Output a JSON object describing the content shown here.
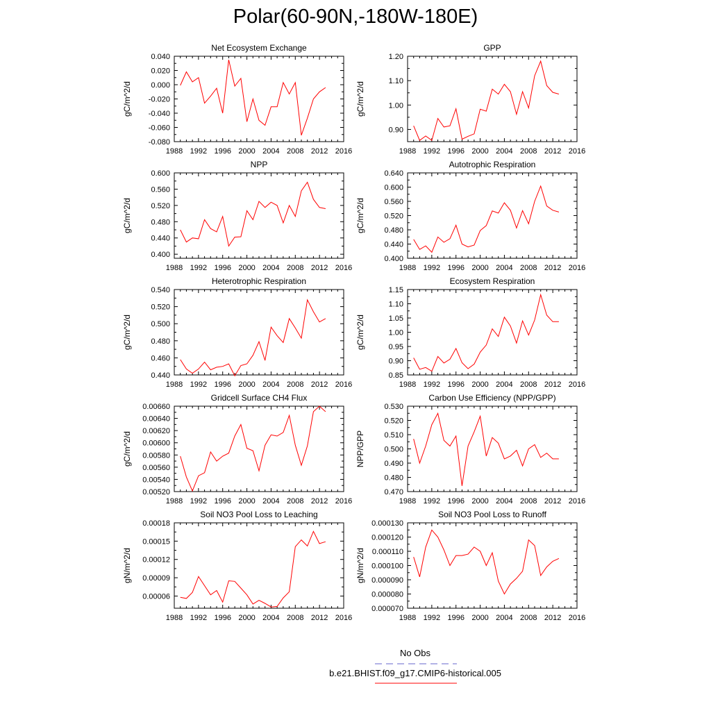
{
  "page": {
    "title": "Polar(60-90N,-180W-180E)"
  },
  "legend": {
    "obs_label": "No Obs",
    "obs_color": "#6666cc",
    "case_label": "b.e21.BHIST.f09_g17.CMIP6-historical.005",
    "case_color": "#ff0000"
  },
  "chart_data": [
    {
      "type": "line",
      "title": "Net Ecosystem Exchange",
      "ylabel": "gC/m^2/d",
      "xlim": [
        1988,
        2016
      ],
      "xticks": [
        "1988",
        "1992",
        "1996",
        "2000",
        "2004",
        "2008",
        "2012",
        "2016"
      ],
      "ylim": [
        -0.08,
        0.04
      ],
      "yticks": [
        "-0.080",
        "-0.060",
        "-0.040",
        "-0.020",
        "0.000",
        "0.020",
        "0.040"
      ],
      "x": [
        1989,
        1990,
        1991,
        1992,
        1993,
        1994,
        1995,
        1996,
        1997,
        1998,
        1999,
        2000,
        2001,
        2002,
        2003,
        2004,
        2005,
        2006,
        2007,
        2008,
        2009,
        2010,
        2011,
        2012,
        2013
      ],
      "series": [
        {
          "name": "b.e21.BHIST.f09_g17.CMIP6-historical.005",
          "color": "#ff0000",
          "values": [
            -0.001,
            0.018,
            0.004,
            0.01,
            -0.026,
            -0.016,
            -0.005,
            -0.04,
            0.035,
            -0.002,
            0.009,
            -0.052,
            -0.02,
            -0.05,
            -0.057,
            -0.031,
            -0.031,
            0.003,
            -0.013,
            0.003,
            -0.071,
            -0.047,
            -0.02,
            -0.01,
            -0.004
          ]
        }
      ]
    },
    {
      "type": "line",
      "title": "GPP",
      "ylabel": "gC/m^2/d",
      "xlim": [
        1988,
        2016
      ],
      "xticks": [
        "1988",
        "1992",
        "1996",
        "2000",
        "2004",
        "2008",
        "2012",
        "2016"
      ],
      "ylim": [
        0.85,
        1.2
      ],
      "yticks": [
        "0.90",
        "1.00",
        "1.10",
        "1.20"
      ],
      "x": [
        1989,
        1990,
        1991,
        1992,
        1993,
        1994,
        1995,
        1996,
        1997,
        1998,
        1999,
        2000,
        2001,
        2002,
        2003,
        2004,
        2005,
        2006,
        2007,
        2008,
        2009,
        2010,
        2011,
        2012,
        2013
      ],
      "series": [
        {
          "name": "b.e21.BHIST.f09_g17.CMIP6-historical.005",
          "color": "#ff0000",
          "values": [
            0.915,
            0.855,
            0.873,
            0.855,
            0.945,
            0.91,
            0.915,
            0.985,
            0.86,
            0.872,
            0.882,
            0.983,
            0.975,
            1.065,
            1.045,
            1.085,
            1.055,
            0.962,
            1.055,
            0.988,
            1.12,
            1.18,
            1.08,
            1.052,
            1.045
          ]
        }
      ]
    },
    {
      "type": "line",
      "title": "NPP",
      "ylabel": "gC/m^2/d",
      "xlim": [
        1988,
        2016
      ],
      "xticks": [
        "1988",
        "1992",
        "1996",
        "2000",
        "2004",
        "2008",
        "2012",
        "2016"
      ],
      "ylim": [
        0.39,
        0.6
      ],
      "yticks": [
        "0.400",
        "0.440",
        "0.480",
        "0.520",
        "0.560",
        "0.600"
      ],
      "x": [
        1989,
        1990,
        1991,
        1992,
        1993,
        1994,
        1995,
        1996,
        1997,
        1998,
        1999,
        2000,
        2001,
        2002,
        2003,
        2004,
        2005,
        2006,
        2007,
        2008,
        2009,
        2010,
        2011,
        2012,
        2013
      ],
      "series": [
        {
          "name": "b.e21.BHIST.f09_g17.CMIP6-historical.005",
          "color": "#ff0000",
          "values": [
            0.46,
            0.43,
            0.44,
            0.438,
            0.485,
            0.463,
            0.455,
            0.493,
            0.42,
            0.442,
            0.443,
            0.507,
            0.485,
            0.53,
            0.515,
            0.528,
            0.52,
            0.477,
            0.52,
            0.493,
            0.556,
            0.577,
            0.535,
            0.515,
            0.512
          ]
        }
      ]
    },
    {
      "type": "line",
      "title": "Autotrophic Respiration",
      "ylabel": "gC/m^2/d",
      "xlim": [
        1988,
        2016
      ],
      "xticks": [
        "1988",
        "1992",
        "1996",
        "2000",
        "2004",
        "2008",
        "2012",
        "2016"
      ],
      "ylim": [
        0.4,
        0.64
      ],
      "yticks": [
        "0.400",
        "0.440",
        "0.480",
        "0.520",
        "0.560",
        "0.600",
        "0.640"
      ],
      "x": [
        1989,
        1990,
        1991,
        1992,
        1993,
        1994,
        1995,
        1996,
        1997,
        1998,
        1999,
        2000,
        2001,
        2002,
        2003,
        2004,
        2005,
        2006,
        2007,
        2008,
        2009,
        2010,
        2011,
        2012,
        2013
      ],
      "series": [
        {
          "name": "b.e21.BHIST.f09_g17.CMIP6-historical.005",
          "color": "#ff0000",
          "values": [
            0.453,
            0.425,
            0.435,
            0.417,
            0.46,
            0.445,
            0.455,
            0.493,
            0.44,
            0.432,
            0.437,
            0.478,
            0.492,
            0.533,
            0.527,
            0.556,
            0.535,
            0.485,
            0.534,
            0.497,
            0.56,
            0.603,
            0.547,
            0.535,
            0.53
          ]
        }
      ]
    },
    {
      "type": "line",
      "title": "Heterotrophic Respiration",
      "ylabel": "gC/m^2/d",
      "xlim": [
        1988,
        2016
      ],
      "xticks": [
        "1988",
        "1992",
        "1996",
        "2000",
        "2004",
        "2008",
        "2012",
        "2016"
      ],
      "ylim": [
        0.44,
        0.54
      ],
      "yticks": [
        "0.440",
        "0.460",
        "0.480",
        "0.500",
        "0.520",
        "0.540"
      ],
      "x": [
        1989,
        1990,
        1991,
        1992,
        1993,
        1994,
        1995,
        1996,
        1997,
        1998,
        1999,
        2000,
        2001,
        2002,
        2003,
        2004,
        2005,
        2006,
        2007,
        2008,
        2009,
        2010,
        2011,
        2012,
        2013
      ],
      "series": [
        {
          "name": "b.e21.BHIST.f09_g17.CMIP6-historical.005",
          "color": "#ff0000",
          "values": [
            0.458,
            0.447,
            0.442,
            0.447,
            0.455,
            0.446,
            0.449,
            0.45,
            0.453,
            0.439,
            0.451,
            0.453,
            0.463,
            0.479,
            0.457,
            0.496,
            0.486,
            0.478,
            0.506,
            0.495,
            0.483,
            0.528,
            0.514,
            0.502,
            0.506
          ]
        }
      ]
    },
    {
      "type": "line",
      "title": "Ecosystem Respiration",
      "ylabel": "gC/m^2/d",
      "xlim": [
        1988,
        2016
      ],
      "xticks": [
        "1988",
        "1992",
        "1996",
        "2000",
        "2004",
        "2008",
        "2012",
        "2016"
      ],
      "ylim": [
        0.85,
        1.15
      ],
      "yticks": [
        "0.85",
        "0.90",
        "0.95",
        "1.00",
        "1.05",
        "1.10",
        "1.15"
      ],
      "x": [
        1989,
        1990,
        1991,
        1992,
        1993,
        1994,
        1995,
        1996,
        1997,
        1998,
        1999,
        2000,
        2001,
        2002,
        2003,
        2004,
        2005,
        2006,
        2007,
        2008,
        2009,
        2010,
        2011,
        2012,
        2013
      ],
      "series": [
        {
          "name": "b.e21.BHIST.f09_g17.CMIP6-historical.005",
          "color": "#ff0000",
          "values": [
            0.91,
            0.87,
            0.876,
            0.863,
            0.915,
            0.892,
            0.905,
            0.943,
            0.893,
            0.872,
            0.888,
            0.93,
            0.955,
            1.012,
            0.985,
            1.053,
            1.022,
            0.962,
            1.04,
            0.99,
            1.043,
            1.132,
            1.06,
            1.037,
            1.037
          ]
        }
      ]
    },
    {
      "type": "line",
      "title": "Gridcell Surface CH4 Flux",
      "ylabel": "gC/m^2/d",
      "xlim": [
        1988,
        2016
      ],
      "xticks": [
        "1988",
        "1992",
        "1996",
        "2000",
        "2004",
        "2008",
        "2012",
        "2016"
      ],
      "ylim": [
        0.0052,
        0.0066
      ],
      "yticks": [
        "0.00520",
        "0.00540",
        "0.00560",
        "0.00580",
        "0.00600",
        "0.00620",
        "0.00640",
        "0.00660"
      ],
      "x": [
        1989,
        1990,
        1991,
        1992,
        1993,
        1994,
        1995,
        1996,
        1997,
        1998,
        1999,
        2000,
        2001,
        2002,
        2003,
        2004,
        2005,
        2006,
        2007,
        2008,
        2009,
        2010,
        2011,
        2012,
        2013
      ],
      "series": [
        {
          "name": "b.e21.BHIST.f09_g17.CMIP6-historical.005",
          "color": "#ff0000",
          "values": [
            0.00578,
            0.00544,
            0.00521,
            0.00546,
            0.00551,
            0.00585,
            0.0057,
            0.00578,
            0.00583,
            0.00611,
            0.0063,
            0.00591,
            0.00587,
            0.00554,
            0.00596,
            0.00613,
            0.00611,
            0.00617,
            0.00645,
            0.00596,
            0.00563,
            0.00595,
            0.00651,
            0.0066,
            0.00651
          ]
        }
      ]
    },
    {
      "type": "line",
      "title": "Carbon Use Efficiency (NPP/GPP)",
      "ylabel": "NPP/GPP",
      "xlim": [
        1988,
        2016
      ],
      "xticks": [
        "1988",
        "1992",
        "1996",
        "2000",
        "2004",
        "2008",
        "2012",
        "2016"
      ],
      "ylim": [
        0.47,
        0.53
      ],
      "yticks": [
        "0.470",
        "0.480",
        "0.490",
        "0.500",
        "0.510",
        "0.520",
        "0.530"
      ],
      "x": [
        1989,
        1990,
        1991,
        1992,
        1993,
        1994,
        1995,
        1996,
        1997,
        1998,
        1999,
        2000,
        2001,
        2002,
        2003,
        2004,
        2005,
        2006,
        2007,
        2008,
        2009,
        2010,
        2011,
        2012,
        2013
      ],
      "series": [
        {
          "name": "b.e21.BHIST.f09_g17.CMIP6-historical.005",
          "color": "#ff0000",
          "values": [
            0.507,
            0.49,
            0.502,
            0.517,
            0.525,
            0.506,
            0.502,
            0.509,
            0.474,
            0.502,
            0.512,
            0.523,
            0.495,
            0.508,
            0.504,
            0.493,
            0.495,
            0.499,
            0.488,
            0.5,
            0.503,
            0.494,
            0.497,
            0.493,
            0.493
          ]
        }
      ]
    },
    {
      "type": "line",
      "title": "Soil NO3 Pool Loss to Leaching",
      "ylabel": "gN/m^2/d",
      "xlim": [
        1988,
        2016
      ],
      "xticks": [
        "1988",
        "1992",
        "1996",
        "2000",
        "2004",
        "2008",
        "2012",
        "2016"
      ],
      "ylim": [
        4e-05,
        0.00018
      ],
      "yticks": [
        "0.00006",
        "0.00009",
        "0.00012",
        "0.00015",
        "0.00018"
      ],
      "x": [
        1989,
        1990,
        1991,
        1992,
        1993,
        1994,
        1995,
        1996,
        1997,
        1998,
        1999,
        2000,
        2001,
        2002,
        2003,
        2004,
        2005,
        2006,
        2007,
        2008,
        2009,
        2010,
        2011,
        2012,
        2013
      ],
      "series": [
        {
          "name": "b.e21.BHIST.f09_g17.CMIP6-historical.005",
          "color": "#ff0000",
          "values": [
            5.8e-05,
            5.6e-05,
            6.6e-05,
            9.2e-05,
            7.7e-05,
            6.2e-05,
            6.9e-05,
            5e-05,
            8.5e-05,
            8.4e-05,
            7.3e-05,
            6.2e-05,
            4.7e-05,
            5.3e-05,
            4.8e-05,
            4.2e-05,
            4.3e-05,
            5.7e-05,
            6.7e-05,
            0.000141,
            0.000152,
            0.000142,
            0.000166,
            0.000146,
            0.000149
          ]
        }
      ]
    },
    {
      "type": "line",
      "title": "Soil NO3 Pool Loss to Runoff",
      "ylabel": "gN/m^2/d",
      "xlim": [
        1988,
        2016
      ],
      "xticks": [
        "1988",
        "1992",
        "1996",
        "2000",
        "2004",
        "2008",
        "2012",
        "2016"
      ],
      "ylim": [
        7e-05,
        0.00013
      ],
      "yticks": [
        "0.000070",
        "0.000080",
        "0.000090",
        "0.000100",
        "0.000110",
        "0.000120",
        "0.000130"
      ],
      "x": [
        1989,
        1990,
        1991,
        1992,
        1993,
        1994,
        1995,
        1996,
        1997,
        1998,
        1999,
        2000,
        2001,
        2002,
        2003,
        2004,
        2005,
        2006,
        2007,
        2008,
        2009,
        2010,
        2011,
        2012,
        2013
      ],
      "series": [
        {
          "name": "b.e21.BHIST.f09_g17.CMIP6-historical.005",
          "color": "#ff0000",
          "values": [
            0.000106,
            9.2e-05,
            0.000113,
            0.000125,
            0.00012,
            0.000111,
            0.0001,
            0.000107,
            0.000107,
            0.000108,
            0.000113,
            0.00011,
            0.0001,
            0.000109,
            8.9e-05,
            8e-05,
            8.7e-05,
            9.1e-05,
            9.6e-05,
            0.000118,
            0.000114,
            9.3e-05,
            9.9e-05,
            0.000103,
            0.000105
          ]
        }
      ]
    }
  ]
}
